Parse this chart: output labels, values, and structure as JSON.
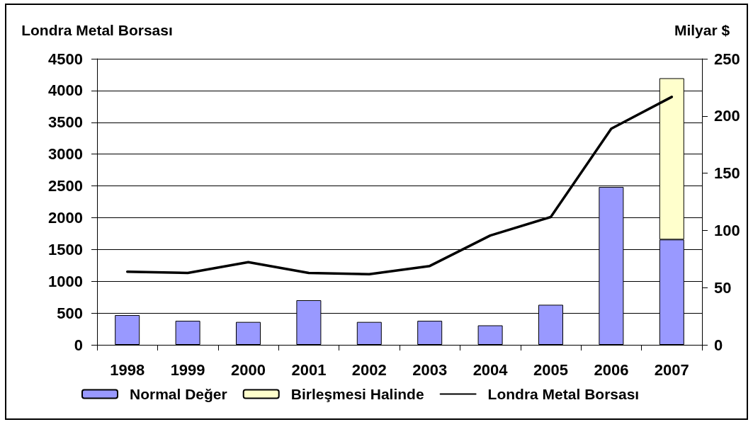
{
  "chart_data": {
    "type": "bar",
    "ylabel": "Londra Metal Borsası",
    "y2label": "Milyar $",
    "categories": [
      "1998",
      "1999",
      "2000",
      "2001",
      "2002",
      "2003",
      "2004",
      "2005",
      "2006",
      "2007"
    ],
    "stacked": true,
    "series": [
      {
        "name": "Normal Değer",
        "axis": "y2",
        "color": "#9999ff",
        "values": [
          26,
          21,
          20,
          39,
          20,
          21,
          17,
          35,
          138,
          92
        ]
      },
      {
        "name": "Birleşmesi Halinde",
        "axis": "y2",
        "color": "#ffffcc",
        "values": [
          null,
          null,
          null,
          null,
          null,
          null,
          null,
          null,
          null,
          141
        ]
      },
      {
        "name": "Londra Metal Borsası",
        "type": "line",
        "color": "#000000",
        "values": [
          1150,
          1130,
          1300,
          1130,
          1110,
          1240,
          1720,
          2010,
          3400,
          3900
        ]
      }
    ],
    "ylim": [
      0,
      4500
    ],
    "yticks": [
      0,
      500,
      1000,
      1500,
      2000,
      2500,
      3000,
      3500,
      4000,
      4500
    ],
    "y2lim": [
      0,
      250
    ],
    "y2ticks": [
      0,
      50,
      100,
      150,
      200,
      250
    ],
    "grid": "y",
    "legend": "bottom"
  }
}
